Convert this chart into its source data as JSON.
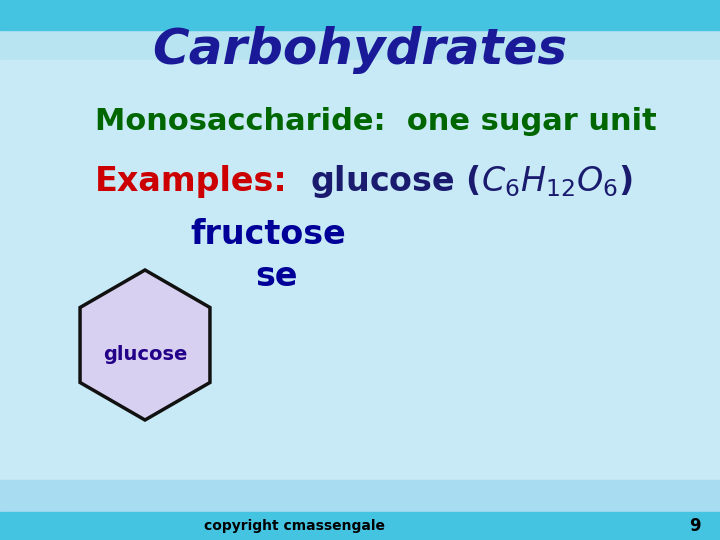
{
  "title": "Carbohydrates",
  "title_color": "#1A1A99",
  "title_fontsize": 36,
  "bg_top_color": "#5BC8E8",
  "bg_mid_color": "#7DD8EE",
  "bg_main_color": "#A8DFF0",
  "bg_light_color": "#C0E8F5",
  "monosaccharide_label": "Monosaccharide:  one sugar unit",
  "monosaccharide_color": "#006600",
  "monosaccharide_fontsize": 22,
  "examples_label": "Examples:",
  "examples_color": "#CC0000",
  "examples_fontsize": 24,
  "glucose_formula": "glucose ($C_6H_{12}O_6$)",
  "glucose_formula_color": "#1A1A6E",
  "glucose_formula_fontsize": 24,
  "fructose_label": "fructose",
  "fructose_color": "#000099",
  "fructose_fontsize": 24,
  "galactose_label": "se",
  "galactose_color": "#000099",
  "galactose_fontsize": 24,
  "hexagon_fill": "#D8D0F0",
  "hexagon_edge": "#111111",
  "hexagon_label": "glucose",
  "hexagon_label_color": "#220088",
  "hexagon_label_fontsize": 14,
  "copyright_text": "copyright cmassengale",
  "copyright_color": "#000000",
  "copyright_fontsize": 10,
  "page_number": "9",
  "page_number_color": "#000000",
  "page_number_fontsize": 12
}
